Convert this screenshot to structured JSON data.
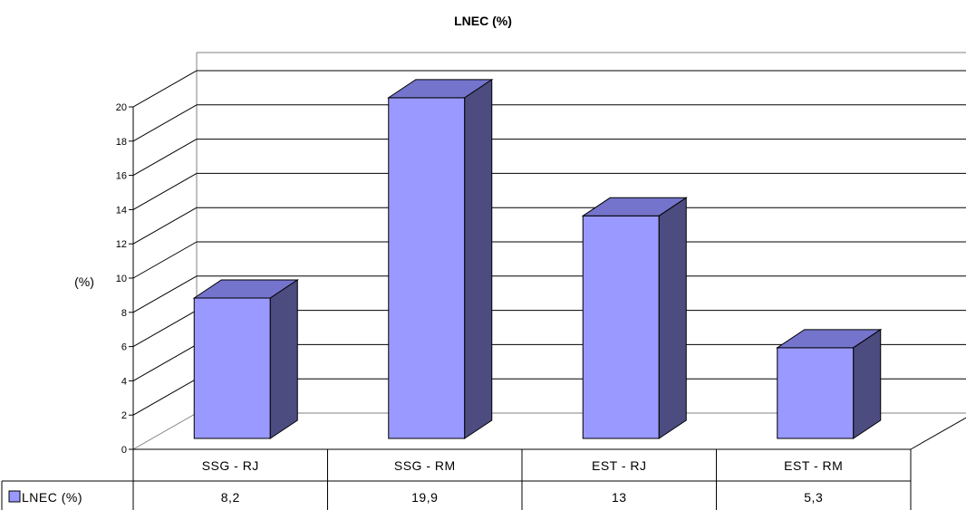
{
  "chart_data": {
    "type": "bar",
    "title": "LNEC (%)",
    "ylabel": "(%)",
    "xlabel": "",
    "categories": [
      "SSG - RJ",
      "SSG - RM",
      "EST - RJ",
      "EST - RM"
    ],
    "series": [
      {
        "name": "LNEC (%)",
        "values": [
          8.2,
          19.9,
          13,
          5.3
        ],
        "value_labels": [
          "8,2",
          "19,9",
          "13",
          "5,3"
        ]
      }
    ],
    "ylim": [
      0,
      20
    ],
    "yticks": [
      0,
      2,
      4,
      6,
      8,
      10,
      12,
      14,
      16,
      18,
      20
    ],
    "grid": true,
    "three_d": true,
    "legend": "data-table-left",
    "colors": {
      "bar_front": "#9999FF",
      "bar_top": "#7474CC",
      "bar_side": "#4C4C80",
      "outline": "#000000"
    }
  }
}
